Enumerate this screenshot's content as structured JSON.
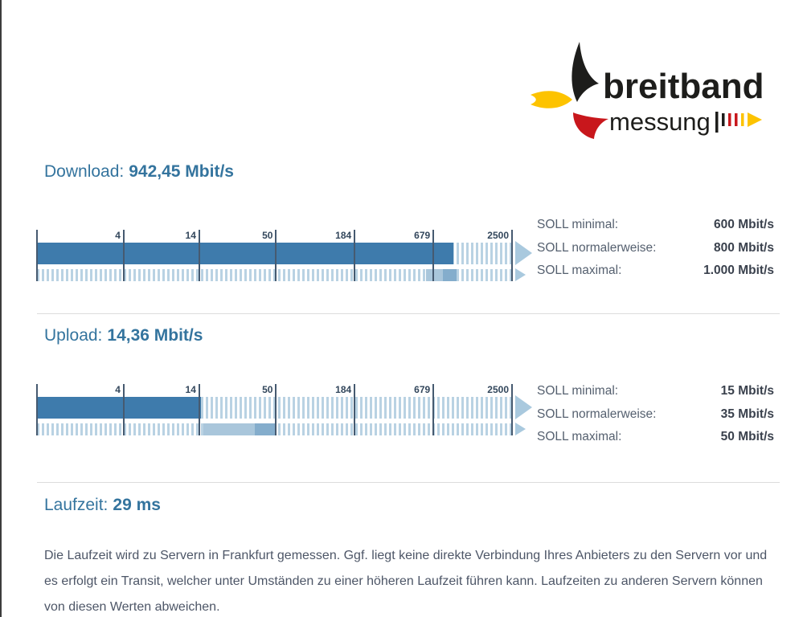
{
  "colors": {
    "accent_heading": "#34749e",
    "bar_solid": "#3e7bac",
    "bar_stripe": "#b9d2e3",
    "soll_range_light": "#a9c6db",
    "soll_range_dark": "#84adcc",
    "arrow": "#a9c9de",
    "tick_line": "#465a70",
    "logo_black": "#1d1d1b",
    "logo_red": "#c8171c",
    "logo_yellow": "#fdc300"
  },
  "logo": {
    "line1": "breitband",
    "line2": "messung"
  },
  "scale": {
    "ticks": [
      4,
      14,
      50,
      184,
      679,
      2500
    ],
    "min": 0.95,
    "max": 2500
  },
  "download": {
    "label": "Download:",
    "value_text": "942,45 Mbit/s",
    "value": 942.45,
    "soll": [
      {
        "label": "SOLL minimal:",
        "value_text": "600 Mbit/s",
        "value": 600
      },
      {
        "label": "SOLL normalerweise:",
        "value_text": "800 Mbit/s",
        "value": 800
      },
      {
        "label": "SOLL maximal:",
        "value_text": "1.000 Mbit/s",
        "value": 1000
      }
    ]
  },
  "upload": {
    "label": "Upload:",
    "value_text": "14,36 Mbit/s",
    "value": 14.36,
    "soll": [
      {
        "label": "SOLL minimal:",
        "value_text": "15 Mbit/s",
        "value": 15
      },
      {
        "label": "SOLL normalerweise:",
        "value_text": "35 Mbit/s",
        "value": 35
      },
      {
        "label": "SOLL maximal:",
        "value_text": "50 Mbit/s",
        "value": 50
      }
    ]
  },
  "latency": {
    "label": "Laufzeit:",
    "value_text": "29 ms"
  },
  "note": "Die Laufzeit wird zu Servern in Frankfurt gemessen. Ggf. liegt keine direkte Verbindung Ihres Anbieters zu den Servern vor und es erfolgt ein Transit, welcher unter Umständen zu einer höheren Laufzeit führen kann. Laufzeiten zu anderen Servern können von diesen Werten abweichen."
}
